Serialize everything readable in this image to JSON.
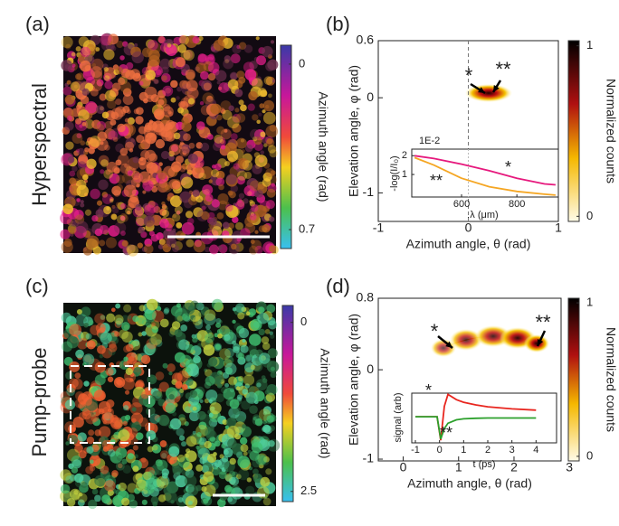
{
  "panel_a": {
    "label": "(a)",
    "title": "Hyperspectral",
    "colorbar": {
      "label": "Azimuth angle (rad)",
      "lim": [
        0.78,
        -0.08
      ],
      "ticks": [
        0,
        0.7
      ]
    }
  },
  "panel_b": {
    "label": "(b)",
    "xlabel": "Azimuth angle, θ (rad)",
    "ylabel": "Elevation angle, φ (rad)",
    "xlim": [
      -1,
      1
    ],
    "xticks": [
      -1,
      0,
      1
    ],
    "ylim": [
      -1.3,
      0.6
    ],
    "yticks": [
      -1,
      0,
      0.6
    ],
    "annotations": [
      {
        "text": "*",
        "color": "#e6197d"
      },
      {
        "text": "**",
        "color": "#f5a623"
      }
    ],
    "colorbar": {
      "label": "Normalized counts",
      "lim": [
        -0.03,
        1.03
      ],
      "ticks": [
        0,
        1
      ]
    },
    "inset": {
      "ylabel": "-log(I/I₀)",
      "scale_label": "1E-2",
      "xlabel": "λ (μm)",
      "xlim": [
        420,
        950
      ],
      "xticks": [
        600,
        800
      ],
      "ylim": [
        -0.2,
        2.35
      ],
      "yticks": [
        1,
        2
      ],
      "x": [
        430,
        500,
        600,
        700,
        800,
        900,
        940
      ],
      "series": [
        {
          "name": "*",
          "color": "#e6197d",
          "values": [
            2.0,
            1.85,
            1.55,
            1.2,
            0.8,
            0.5,
            0.45
          ]
        },
        {
          "name": "**",
          "color": "#f5a623",
          "values": [
            1.9,
            1.5,
            0.8,
            0.35,
            0.1,
            -0.05,
            -0.1
          ]
        }
      ]
    }
  },
  "panel_c": {
    "label": "(c)",
    "title": "Pump-probe",
    "colorbar": {
      "label": "Azimuth angle (rad)",
      "lim": [
        2.65,
        -0.25
      ],
      "ticks": [
        0,
        2.5
      ]
    }
  },
  "panel_d": {
    "label": "(d)",
    "xlabel": "Azimuth angle, θ (rad)",
    "ylabel": "Elevation angle, φ (rad)",
    "xlim": [
      -0.45,
      2.85
    ],
    "xticks": [
      0,
      1,
      2,
      3
    ],
    "ylim": [
      -1.02,
      0.8
    ],
    "yticks": [
      -1,
      0,
      0.8
    ],
    "annotations": [
      {
        "text": "*",
        "color": "#e8261f"
      },
      {
        "text": "**",
        "color": "#2ca02c"
      }
    ],
    "colorbar": {
      "label": "Normalized counts",
      "lim": [
        -0.03,
        1.03
      ],
      "ticks": [
        0,
        1
      ]
    },
    "inset": {
      "ylabel": "signal (arb)",
      "xlabel": "t (ps)",
      "xlim": [
        -1.15,
        4.85
      ],
      "xticks": [
        -1,
        0,
        1,
        2,
        3,
        4
      ],
      "ylim": [
        -1,
        0.9
      ],
      "x": [
        -1,
        -0.1,
        0.05,
        0.2,
        0.35,
        0.7,
        1,
        1.5,
        2,
        3,
        4
      ],
      "series": [
        {
          "name": "*",
          "color": "#e8261f",
          "values": [
            0,
            0,
            -0.9,
            0.4,
            0.85,
            0.65,
            0.55,
            0.45,
            0.38,
            0.3,
            0.25
          ]
        },
        {
          "name": "**",
          "color": "#2ca02c",
          "values": [
            0,
            0,
            -0.85,
            -0.45,
            -0.25,
            -0.12,
            -0.08,
            -0.06,
            -0.05,
            -0.05,
            -0.05
          ]
        }
      ]
    }
  }
}
